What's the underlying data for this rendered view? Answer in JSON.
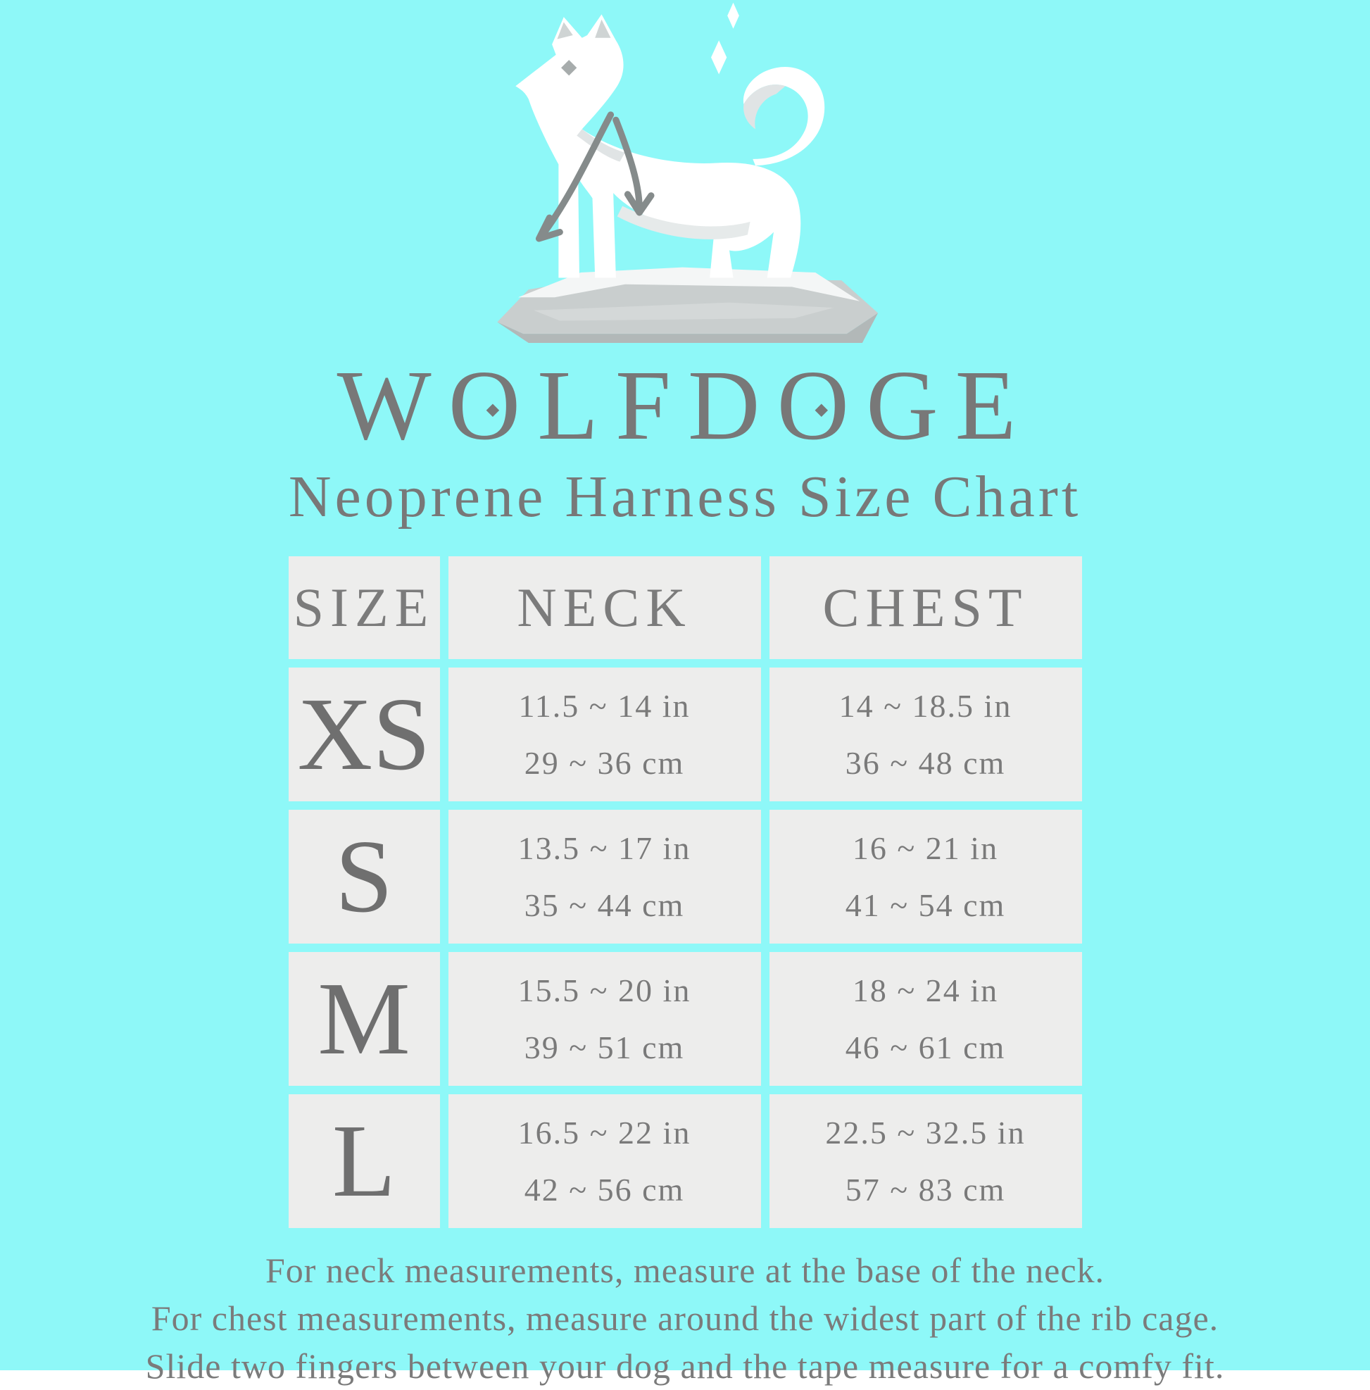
{
  "page": {
    "background_color": "#8EF8F8",
    "cell_color": "#EDEDEC",
    "text_color": "#757575"
  },
  "logo": {
    "icon": "white-husky-dog-on-rock-with-measuring-lines",
    "sparkles": "white-diamond-sparkles"
  },
  "brand": "WOLFDOGE",
  "subtitle": "Neoprene Harness Size Chart",
  "table": {
    "headers": [
      "SIZE",
      "NECK",
      "CHEST"
    ],
    "rows": [
      {
        "size": "XS",
        "neck_in": "11.5 ~ 14 in",
        "neck_cm": "29 ~ 36 cm",
        "chest_in": "14 ~ 18.5 in",
        "chest_cm": "36 ~ 48 cm"
      },
      {
        "size": "S",
        "neck_in": "13.5 ~ 17 in",
        "neck_cm": "35 ~ 44 cm",
        "chest_in": "16 ~ 21 in",
        "chest_cm": "41 ~ 54 cm"
      },
      {
        "size": "M",
        "neck_in": "15.5 ~ 20 in",
        "neck_cm": "39 ~ 51 cm",
        "chest_in": "18 ~ 24 in",
        "chest_cm": "46 ~ 61 cm"
      },
      {
        "size": "L",
        "neck_in": "16.5 ~ 22 in",
        "neck_cm": "42 ~ 56 cm",
        "chest_in": "22.5 ~ 32.5 in",
        "chest_cm": "57 ~ 83 cm"
      }
    ]
  },
  "footer": {
    "line1": "For neck measurements, measure at the base of the neck.",
    "line2": "For chest measurements, measure around the widest part of the rib cage.",
    "line3": "Slide two fingers between your dog and the tape measure for a comfy fit."
  },
  "chart_data": {
    "type": "table",
    "title": "WOLFDOGE Neoprene Harness Size Chart",
    "columns": [
      "SIZE",
      "NECK",
      "CHEST"
    ],
    "rows": [
      [
        "XS",
        "11.5 ~ 14 in / 29 ~ 36 cm",
        "14 ~ 18.5 in / 36 ~ 48 cm"
      ],
      [
        "S",
        "13.5 ~ 17 in / 35 ~ 44 cm",
        "16 ~ 21 in / 41 ~ 54 cm"
      ],
      [
        "M",
        "15.5 ~ 20 in / 39 ~ 51 cm",
        "18 ~ 24 in / 46 ~ 61 cm"
      ],
      [
        "L",
        "16.5 ~ 22 in / 42 ~ 56 cm",
        "22.5 ~ 32.5 in / 57 ~ 83 cm"
      ]
    ]
  }
}
